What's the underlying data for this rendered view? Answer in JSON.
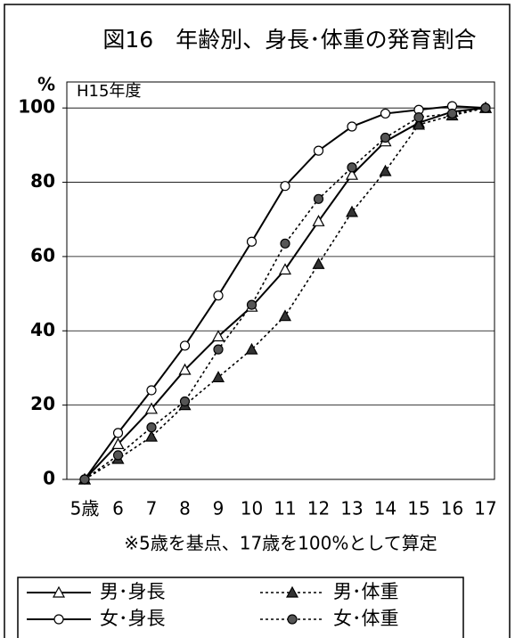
{
  "chart_data": {
    "type": "line",
    "title": "図16　年齢別、身長･体重の発育割合",
    "y_axis_label": "%",
    "annotation": "H15年度",
    "subtitle": "※5歳を基点、17歳を100%として算定",
    "categories": [
      "5歳",
      "6",
      "7",
      "8",
      "9",
      "10",
      "11",
      "12",
      "13",
      "14",
      "15",
      "16",
      "17"
    ],
    "ylim": [
      0,
      107
    ],
    "yticks": [
      0,
      20,
      40,
      60,
      80,
      100
    ],
    "grid": true,
    "series": [
      {
        "name": "男･身長",
        "color": "#000000",
        "marker": "triangle-open",
        "dash": false,
        "values": [
          0,
          9.5,
          19,
          29.5,
          38.5,
          46.5,
          56.5,
          69.5,
          82,
          91,
          96,
          99,
          100
        ]
      },
      {
        "name": "男･体重",
        "color": "#000000",
        "marker": "triangle-filled",
        "dash": true,
        "values": [
          0,
          5.5,
          11.5,
          20,
          27.5,
          35,
          44,
          58,
          72,
          83,
          95.5,
          98,
          100
        ]
      },
      {
        "name": "女･身長",
        "color": "#000000",
        "marker": "circle-open",
        "dash": false,
        "values": [
          0,
          12.5,
          24,
          36,
          49.5,
          64,
          79,
          88.5,
          95,
          98.5,
          99.5,
          100.5,
          100
        ]
      },
      {
        "name": "女･体重",
        "color": "#000000",
        "marker": "circle-filled",
        "dash": true,
        "values": [
          0,
          6.5,
          14,
          21,
          35,
          47,
          63.5,
          75.5,
          84,
          92,
          97.5,
          98.5,
          100
        ]
      }
    ]
  }
}
